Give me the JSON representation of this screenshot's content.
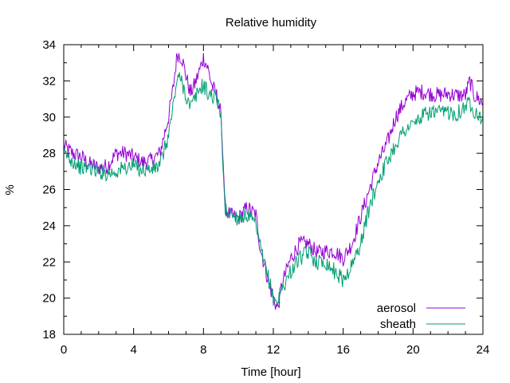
{
  "chart_data": {
    "type": "line",
    "title": "Relative humidity",
    "xlabel": "Time [hour]",
    "ylabel": "%",
    "xlim": [
      0,
      24
    ],
    "ylim": [
      18,
      34
    ],
    "xticks": [
      0,
      4,
      8,
      12,
      16,
      20,
      24
    ],
    "yticks": [
      18,
      20,
      22,
      24,
      26,
      28,
      30,
      32,
      34
    ],
    "grid": false,
    "legend_position": "bottom-right",
    "series": [
      {
        "name": "aerosol",
        "color": "#9400d3",
        "x": [
          0,
          0.5,
          1,
          1.5,
          2,
          2.5,
          3,
          3.5,
          4,
          4.5,
          5,
          5.5,
          6,
          6.25,
          6.5,
          6.75,
          7,
          7.25,
          7.5,
          7.75,
          8,
          8.25,
          8.5,
          8.75,
          9,
          9.1,
          9.25,
          9.5,
          10,
          10.5,
          11,
          11.25,
          11.5,
          11.75,
          12,
          12.25,
          12.5,
          12.75,
          13,
          13.5,
          14,
          14.5,
          15,
          15.5,
          16,
          16.5,
          17,
          17.5,
          18,
          18.5,
          19,
          19.5,
          20,
          20.5,
          21,
          21.5,
          22,
          22.5,
          23,
          23.25,
          23.5,
          23.75,
          24
        ],
        "y": [
          28.4,
          28.0,
          27.8,
          27.4,
          27.2,
          27.3,
          28.0,
          28.0,
          27.8,
          27.5,
          27.6,
          28.0,
          30.0,
          31.5,
          33.5,
          33.3,
          32.3,
          31.3,
          31.8,
          32.5,
          33.3,
          32.7,
          31.7,
          31.2,
          30.2,
          28.0,
          25.0,
          24.6,
          24.4,
          25.0,
          24.6,
          22.8,
          21.8,
          20.8,
          20.0,
          19.4,
          20.8,
          21.5,
          22.2,
          23.0,
          23.0,
          22.5,
          22.6,
          22.6,
          22.2,
          23.0,
          24.5,
          26.0,
          27.5,
          28.5,
          30.0,
          30.8,
          31.3,
          31.4,
          31.3,
          31.2,
          31.3,
          31.2,
          31.2,
          32.0,
          31.2,
          31.0,
          30.7
        ]
      },
      {
        "name": "sheath",
        "color": "#009e73",
        "x": [
          0,
          0.5,
          1,
          1.5,
          2,
          2.5,
          3,
          3.5,
          4,
          4.5,
          5,
          5.5,
          6,
          6.25,
          6.5,
          6.75,
          7,
          7.25,
          7.5,
          7.75,
          8,
          8.25,
          8.5,
          8.75,
          9,
          9.1,
          9.25,
          9.5,
          10,
          10.5,
          11,
          11.25,
          11.5,
          11.75,
          12,
          12.25,
          12.5,
          12.75,
          13,
          13.5,
          14,
          14.5,
          15,
          15.5,
          16,
          16.5,
          17,
          17.5,
          18,
          18.5,
          19,
          19.5,
          20,
          20.5,
          21,
          21.5,
          22,
          22.5,
          23,
          23.25,
          23.5,
          23.75,
          24
        ],
        "y": [
          28.0,
          27.6,
          27.2,
          27.2,
          27.0,
          26.9,
          27.0,
          27.2,
          27.3,
          27.1,
          27.1,
          27.3,
          29.0,
          30.5,
          32.2,
          32.0,
          31.2,
          30.5,
          31.0,
          31.5,
          31.8,
          31.3,
          31.2,
          31.0,
          30.2,
          27.5,
          24.8,
          24.7,
          24.4,
          24.6,
          24.0,
          22.8,
          21.8,
          21.0,
          20.0,
          19.8,
          20.5,
          21.0,
          21.5,
          22.2,
          22.5,
          22.0,
          22.0,
          21.5,
          21.0,
          21.8,
          23.0,
          25.0,
          26.5,
          27.5,
          28.5,
          29.3,
          29.6,
          30.0,
          30.3,
          30.2,
          30.3,
          30.2,
          30.6,
          30.8,
          30.4,
          30.2,
          29.8
        ]
      }
    ]
  }
}
